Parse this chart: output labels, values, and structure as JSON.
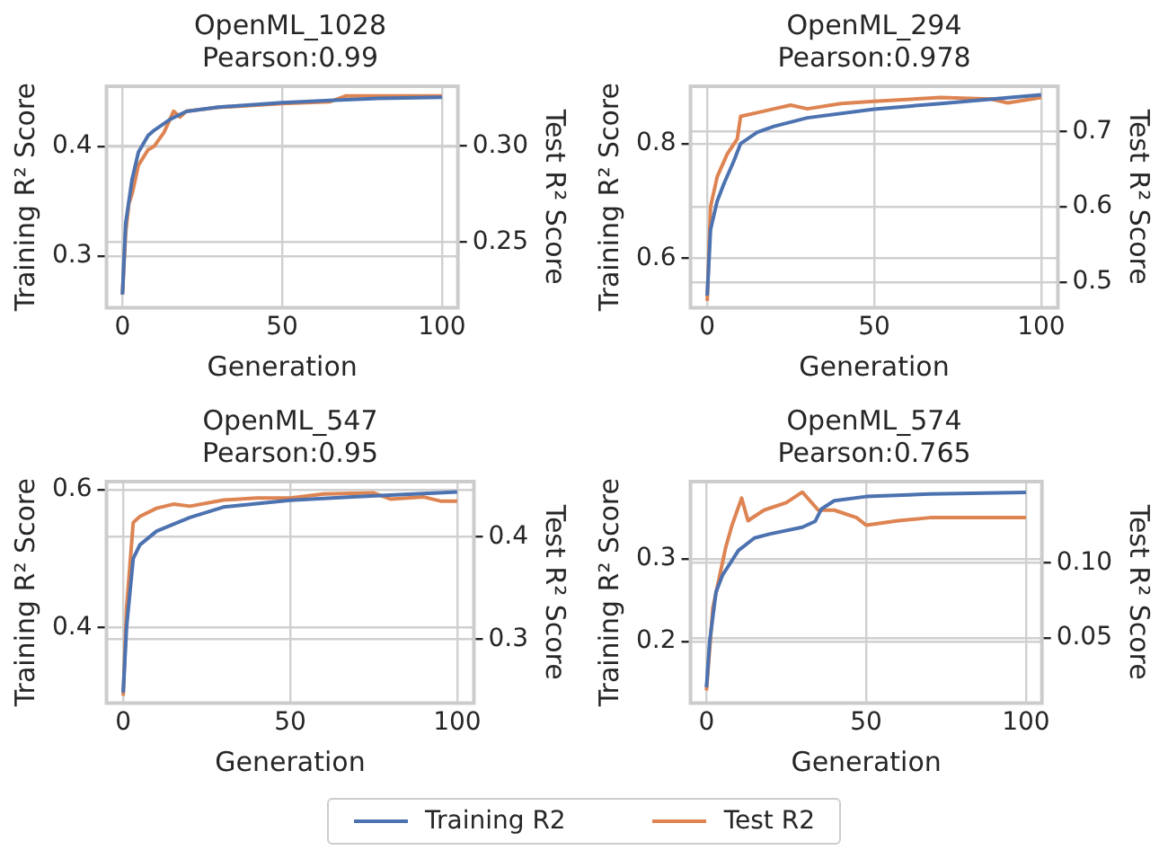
{
  "chart_data": [
    {
      "type": "line",
      "title": "OpenML_1028",
      "subtitle": "Pearson:0.99",
      "xlabel": "Generation",
      "ylabel": "Training R² Score",
      "y2label": "Test R² Score",
      "xlim": [
        -5,
        105
      ],
      "xticks": [
        0,
        50,
        100
      ],
      "ylim": [
        0.253,
        0.455
      ],
      "yticks": [
        0.3,
        0.4
      ],
      "y2lim": [
        0.216,
        0.331
      ],
      "y2ticks": [
        0.25,
        {
          "value": 0.3,
          "label": "0.30"
        }
      ],
      "grid": true,
      "legend": "bottom",
      "series": [
        {
          "name": "Training R2",
          "color": "#4c72b0",
          "x": [
            0,
            1,
            3,
            5,
            8,
            10,
            15,
            20,
            30,
            50,
            65,
            80,
            100
          ],
          "values": [
            0.265,
            0.33,
            0.37,
            0.395,
            0.41,
            0.415,
            0.425,
            0.432,
            0.436,
            0.44,
            0.442,
            0.444,
            0.445
          ]
        },
        {
          "name": "Test R2",
          "color": "#dd8452",
          "axis": "y2",
          "x": [
            0,
            1,
            2,
            3,
            5,
            8,
            10,
            13,
            16,
            18,
            20,
            30,
            50,
            65,
            70,
            100
          ],
          "values": [
            0.223,
            0.255,
            0.27,
            0.275,
            0.29,
            0.298,
            0.3,
            0.307,
            0.318,
            0.315,
            0.318,
            0.32,
            0.322,
            0.323,
            0.326,
            0.326
          ]
        }
      ]
    },
    {
      "type": "line",
      "title": "OpenML_294",
      "subtitle": "Pearson:0.978",
      "xlabel": "Generation",
      "ylabel": "Training R² Score",
      "y2label": "Test R² Score",
      "xlim": [
        -5,
        105
      ],
      "xticks": [
        0,
        50,
        100
      ],
      "ylim": [
        0.514,
        0.9
      ],
      "yticks": [
        0.6,
        0.8
      ],
      "y2lim": [
        0.466,
        0.76
      ],
      "y2ticks": [
        0.5,
        0.6,
        0.7
      ],
      "grid": true,
      "series": [
        {
          "color": "#4c72b0",
          "x": [
            0,
            1,
            3,
            5,
            8,
            10,
            15,
            20,
            30,
            50,
            70,
            100
          ],
          "values": [
            0.535,
            0.65,
            0.7,
            0.73,
            0.77,
            0.8,
            0.82,
            0.83,
            0.845,
            0.86,
            0.87,
            0.885
          ]
        },
        {
          "color": "#dd8452",
          "axis": "y2",
          "x": [
            0,
            1,
            3,
            6,
            9,
            10,
            15,
            20,
            25,
            30,
            40,
            50,
            70,
            85,
            90,
            100
          ],
          "values": [
            0.475,
            0.6,
            0.64,
            0.67,
            0.69,
            0.72,
            0.725,
            0.73,
            0.735,
            0.73,
            0.737,
            0.74,
            0.745,
            0.743,
            0.738,
            0.745
          ]
        }
      ]
    },
    {
      "type": "line",
      "title": "OpenML_547",
      "subtitle": "Pearson:0.95",
      "xlabel": "Generation",
      "ylabel": "Training R² Score",
      "y2label": "Test R² Score",
      "xlim": [
        -5,
        105
      ],
      "xticks": [
        0,
        50,
        100
      ],
      "ylim": [
        0.29,
        0.612
      ],
      "yticks": [
        0.4,
        0.6
      ],
      "y2lim": [
        0.238,
        0.454
      ],
      "y2ticks": [
        0.3,
        0.4
      ],
      "grid": true,
      "series": [
        {
          "color": "#4c72b0",
          "x": [
            0,
            1,
            3,
            5,
            10,
            20,
            30,
            50,
            70,
            100
          ],
          "values": [
            0.305,
            0.4,
            0.5,
            0.52,
            0.54,
            0.56,
            0.575,
            0.585,
            0.59,
            0.597
          ]
        },
        {
          "color": "#dd8452",
          "axis": "y2",
          "x": [
            0,
            1,
            3,
            5,
            10,
            15,
            20,
            30,
            40,
            50,
            60,
            75,
            80,
            90,
            95,
            100
          ],
          "values": [
            0.245,
            0.33,
            0.414,
            0.42,
            0.428,
            0.432,
            0.43,
            0.436,
            0.438,
            0.438,
            0.442,
            0.443,
            0.437,
            0.439,
            0.435,
            0.435
          ]
        }
      ]
    },
    {
      "type": "line",
      "title": "OpenML_574",
      "subtitle": "Pearson:0.765",
      "xlabel": "Generation",
      "ylabel": "Training R² Score",
      "y2label": "Test R² Score",
      "xlim": [
        -5,
        105
      ],
      "xticks": [
        0,
        50,
        100
      ],
      "ylim": [
        0.126,
        0.393
      ],
      "yticks": [
        0.2,
        0.3
      ],
      "y2lim": [
        0.0066,
        0.154
      ],
      "y2ticks": [
        0.05,
        {
          "value": 0.1,
          "label": "0.10"
        }
      ],
      "grid": true,
      "series": [
        {
          "color": "#4c72b0",
          "x": [
            0,
            1,
            3,
            5,
            10,
            15,
            20,
            30,
            34,
            36,
            40,
            50,
            70,
            100
          ],
          "values": [
            0.145,
            0.2,
            0.26,
            0.28,
            0.31,
            0.325,
            0.33,
            0.338,
            0.345,
            0.36,
            0.37,
            0.375,
            0.378,
            0.38
          ]
        },
        {
          "color": "#dd8452",
          "axis": "y2",
          "x": [
            0,
            2,
            4,
            6,
            8,
            11,
            13,
            18,
            25,
            30,
            35,
            40,
            47,
            50,
            60,
            70,
            100
          ],
          "values": [
            0.015,
            0.07,
            0.09,
            0.11,
            0.125,
            0.143,
            0.128,
            0.135,
            0.14,
            0.147,
            0.135,
            0.135,
            0.13,
            0.125,
            0.128,
            0.13,
            0.13
          ]
        }
      ]
    }
  ]
}
